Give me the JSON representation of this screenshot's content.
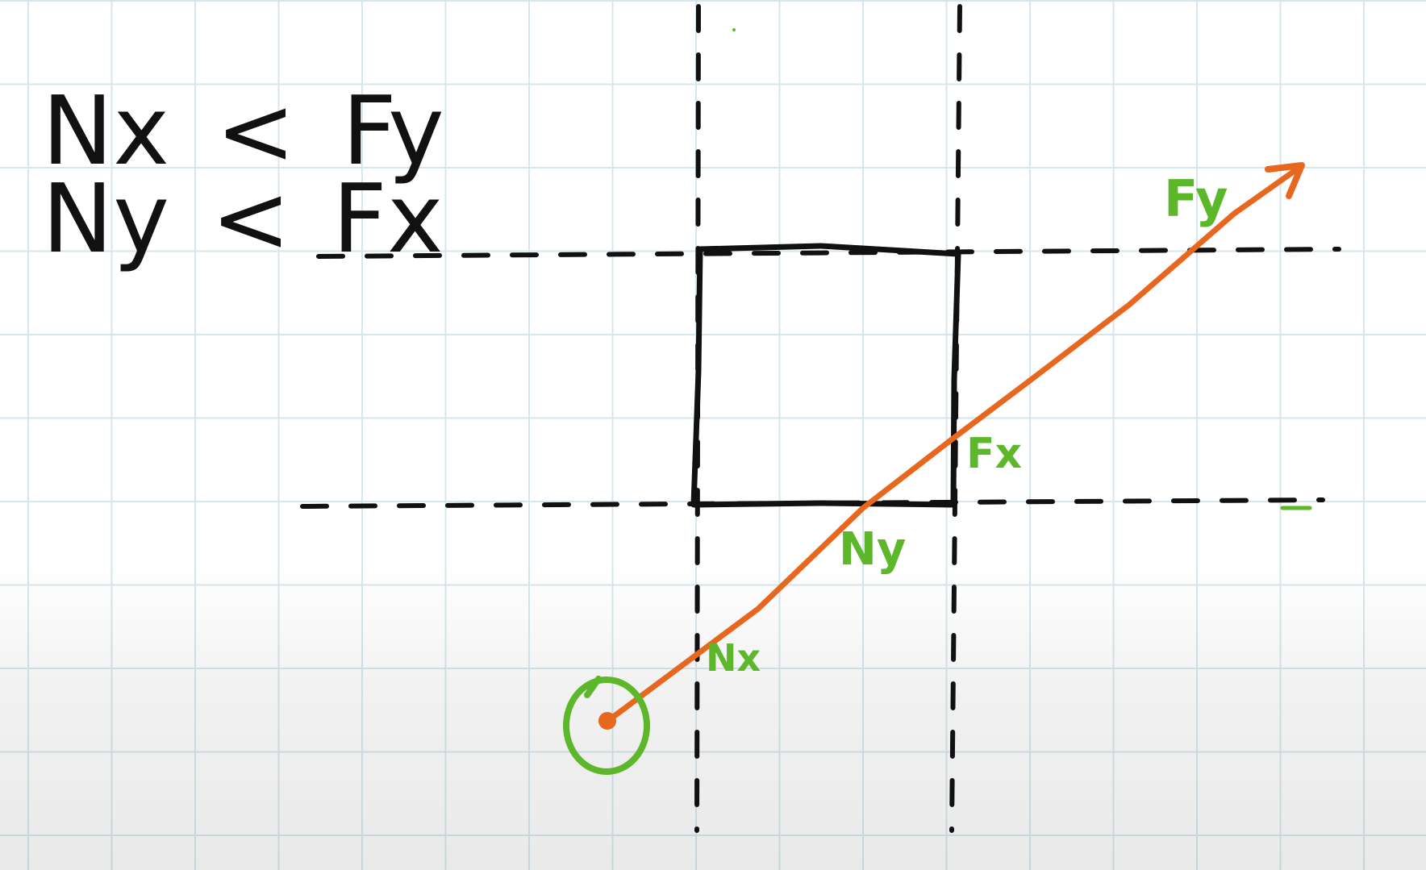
{
  "inequalities": [
    {
      "left": "Nx",
      "op": "<",
      "right": "Fy"
    },
    {
      "left": "Ny",
      "op": "<",
      "right": "Fx"
    }
  ],
  "labels": {
    "near_x": "Nx",
    "near_y": "Ny",
    "far_x": "Fx",
    "far_y": "Fy"
  },
  "colors": {
    "grid": "#d6e6ee",
    "ink": "#111111",
    "ray": "#e8671f",
    "label": "#5cb82a"
  }
}
